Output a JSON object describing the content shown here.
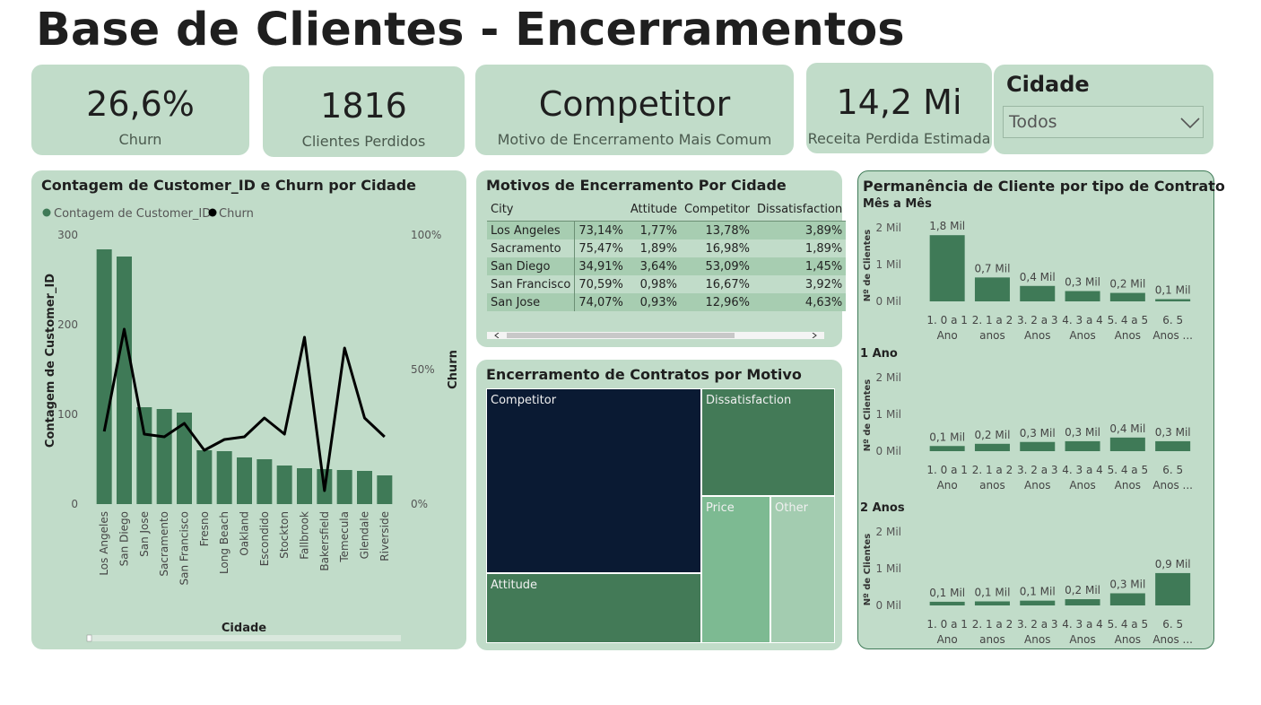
{
  "page": {
    "title": "Base de Clientes - Encerramentos"
  },
  "kpis": [
    {
      "value": "26,6%",
      "label": "Churn"
    },
    {
      "value": "1816",
      "label": "Clientes Perdidos"
    },
    {
      "value": "Competitor",
      "label": "Motivo de Encerramento Mais Comum"
    },
    {
      "value": "14,2 Mi",
      "label": "Receita Perdida Estimada"
    }
  ],
  "slicer": {
    "title": "Cidade",
    "value": "Todos",
    "icon": "chevron-down-icon"
  },
  "colors": {
    "panel": "#c1dcc9",
    "bar": "#3f7a57",
    "line": "#000000",
    "treemap_dark": "#0a1a33",
    "treemap_mid": "#3f7a57",
    "treemap_light": "#7dba92"
  },
  "chart_data": [
    {
      "type": "bar",
      "title": "Contagem de Customer_ID e Churn por Cidade",
      "legend": [
        "Contagem de Customer_ID",
        "Churn"
      ],
      "legend_position": "top-left",
      "xlabel": "Cidade",
      "ylabel": "Contagem de Customer_ID",
      "y2label": "Churn",
      "ylim": [
        0,
        300
      ],
      "y2lim": [
        0,
        100
      ],
      "y_ticks": [
        "0",
        "100",
        "200",
        "300"
      ],
      "y2_ticks": [
        "0%",
        "50%",
        "100%"
      ],
      "categories": [
        "Los Angeles",
        "San Diego",
        "San Jose",
        "Sacramento",
        "San Francisco",
        "Fresno",
        "Long Beach",
        "Oakland",
        "Escondido",
        "Stockton",
        "Fallbrook",
        "Bakersfield",
        "Temecula",
        "Glendale",
        "Riverside"
      ],
      "series": [
        {
          "name": "Contagem de Customer_ID",
          "type": "bar",
          "values": [
            284,
            276,
            108,
            106,
            102,
            60,
            59,
            52,
            50,
            43,
            40,
            39,
            38,
            37,
            32
          ]
        },
        {
          "name": "Churn",
          "type": "line",
          "values": [
            27,
            65,
            26,
            25,
            30,
            20,
            24,
            25,
            32,
            26,
            62,
            5,
            58,
            32,
            25
          ]
        }
      ]
    },
    {
      "type": "table",
      "title": "Motivos de Encerramento Por Cidade",
      "columns": [
        "City",
        "",
        "Attitude",
        "Competitor",
        "Dissatisfaction"
      ],
      "rows": [
        [
          "Los Angeles",
          "73,14%",
          "1,77%",
          "13,78%",
          "3,89%"
        ],
        [
          "Sacramento",
          "75,47%",
          "1,89%",
          "16,98%",
          "1,89%"
        ],
        [
          "San Diego",
          "34,91%",
          "3,64%",
          "53,09%",
          "1,45%"
        ],
        [
          "San Francisco",
          "70,59%",
          "0,98%",
          "16,67%",
          "3,92%"
        ],
        [
          "San Jose",
          "74,07%",
          "0,93%",
          "12,96%",
          "4,63%"
        ]
      ]
    },
    {
      "type": "heatmap",
      "subtype": "treemap",
      "title": "Encerramento de Contratos por Motivo",
      "items": [
        {
          "label": "Competitor",
          "value": 48
        },
        {
          "label": "Attitude",
          "value": 17
        },
        {
          "label": "Dissatisfaction",
          "value": 16
        },
        {
          "label": "Price",
          "value": 10
        },
        {
          "label": "Other",
          "value": 9
        }
      ]
    },
    {
      "type": "bar",
      "title": "Permanência de Cliente por tipo de Contrato",
      "ylabel": "Nº de Clientes",
      "ylim": [
        0,
        2
      ],
      "y_ticks": [
        "0 Mil",
        "1 Mil",
        "2 Mil"
      ],
      "categories": [
        [
          "1. 0 a 1",
          "Ano"
        ],
        [
          "2. 1 a 2",
          "anos"
        ],
        [
          "3. 2 a 3",
          "Anos"
        ],
        [
          "4. 3 a 4",
          "Anos"
        ],
        [
          "5. 4 a 5",
          "Anos"
        ],
        [
          "6. 5",
          "Anos ..."
        ]
      ],
      "panels": [
        {
          "name": "Mês a Mês",
          "values": [
            1.8,
            0.65,
            0.42,
            0.28,
            0.23,
            0.06
          ],
          "labels": [
            "1,8 Mil",
            "0,7 Mil",
            "0,4 Mil",
            "0,3 Mil",
            "0,2 Mil",
            "0,1 Mil"
          ]
        },
        {
          "name": "1 Ano",
          "values": [
            0.14,
            0.2,
            0.25,
            0.27,
            0.37,
            0.27
          ],
          "labels": [
            "0,1 Mil",
            "0,2 Mil",
            "0,3 Mil",
            "0,3 Mil",
            "0,4 Mil",
            "0,3 Mil"
          ]
        },
        {
          "name": "2 Anos",
          "values": [
            0.1,
            0.11,
            0.13,
            0.17,
            0.33,
            0.88
          ],
          "labels": [
            "0,1 Mil",
            "0,1 Mil",
            "0,1 Mil",
            "0,2 Mil",
            "0,3 Mil",
            "0,9 Mil"
          ]
        }
      ]
    }
  ]
}
